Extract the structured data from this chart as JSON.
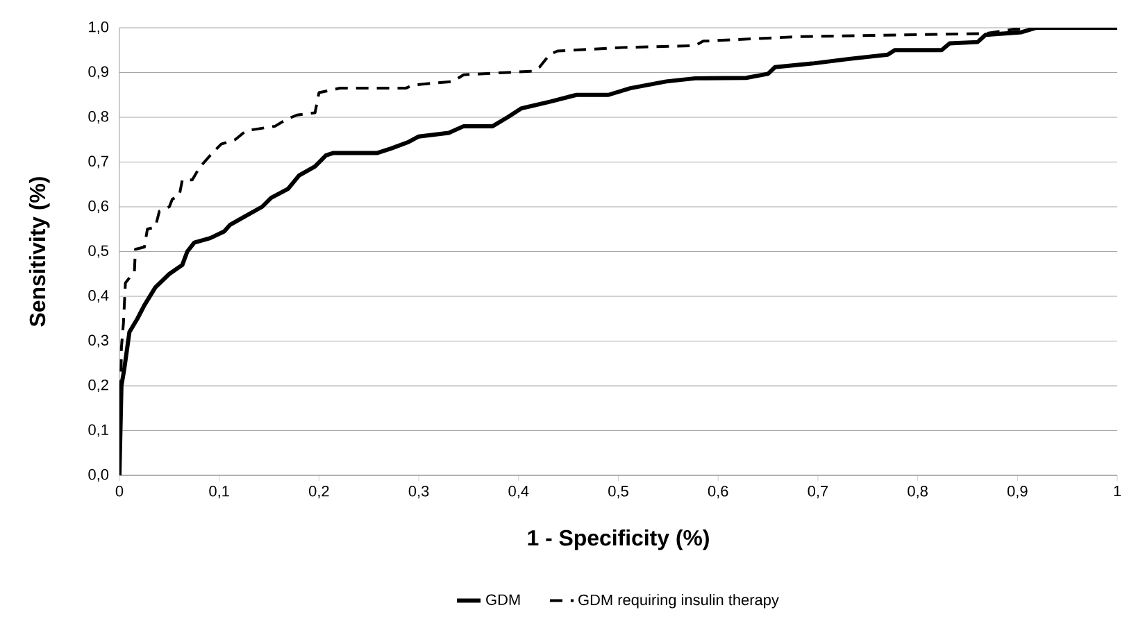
{
  "chart_data": {
    "type": "line",
    "xlabel": "1 - Specificity (%)",
    "ylabel": "Sensitivity (%)",
    "xlim": [
      0,
      1
    ],
    "ylim": [
      0,
      1
    ],
    "xticks": [
      0,
      {
        "value": 0.1,
        "label": "0,1"
      },
      {
        "value": 0.2,
        "label": "0,2"
      },
      {
        "value": 0.3,
        "label": "0,3"
      },
      {
        "value": 0.4,
        "label": "0,4"
      },
      {
        "value": 0.5,
        "label": "0,5"
      },
      {
        "value": 0.6,
        "label": "0,6"
      },
      {
        "value": 0.7,
        "label": "0,7"
      },
      {
        "value": 0.8,
        "label": "0,8"
      },
      {
        "value": 0.9,
        "label": "0,9"
      },
      1
    ],
    "yticks": [
      {
        "value": 0,
        "label": "0,0"
      },
      {
        "value": 0.1,
        "label": "0,1"
      },
      {
        "value": 0.2,
        "label": "0,2"
      },
      {
        "value": 0.3,
        "label": "0,3"
      },
      {
        "value": 0.4,
        "label": "0,4"
      },
      {
        "value": 0.5,
        "label": "0,5"
      },
      {
        "value": 0.6,
        "label": "0,6"
      },
      {
        "value": 0.7,
        "label": "0,7"
      },
      {
        "value": 0.8,
        "label": "0,8"
      },
      {
        "value": 0.9,
        "label": "0,9"
      },
      {
        "value": 1,
        "label": "1,0"
      }
    ],
    "grid": "y",
    "legend": "bottom",
    "series": [
      {
        "name": "GDM",
        "color": "#000000",
        "line_style": "solid",
        "x": [
          0,
          0.001,
          0.002,
          0.005,
          0.01,
          0.018,
          0.025,
          0.036,
          0.05,
          0.063,
          0.068,
          0.075,
          0.091,
          0.105,
          0.111,
          0.127,
          0.143,
          0.152,
          0.169,
          0.18,
          0.196,
          0.207,
          0.214,
          0.258,
          0.272,
          0.29,
          0.3,
          0.33,
          0.345,
          0.374,
          0.389,
          0.403,
          0.432,
          0.458,
          0.49,
          0.512,
          0.548,
          0.577,
          0.628,
          0.65,
          0.657,
          0.694,
          0.73,
          0.77,
          0.777,
          0.824,
          0.832,
          0.86,
          0.868,
          0.904,
          0.919,
          1
        ],
        "values": [
          0,
          0.1,
          0.2,
          0.24,
          0.32,
          0.35,
          0.38,
          0.42,
          0.45,
          0.47,
          0.5,
          0.52,
          0.53,
          0.545,
          0.56,
          0.58,
          0.6,
          0.62,
          0.64,
          0.67,
          0.69,
          0.715,
          0.72,
          0.72,
          0.73,
          0.745,
          0.757,
          0.765,
          0.78,
          0.78,
          0.8,
          0.82,
          0.835,
          0.85,
          0.85,
          0.865,
          0.88,
          0.887,
          0.888,
          0.897,
          0.912,
          0.92,
          0.93,
          0.94,
          0.95,
          0.95,
          0.965,
          0.968,
          0.984,
          0.99,
          1,
          1
        ]
      },
      {
        "name": "GDM requiring insulin therapy",
        "color": "#000000",
        "line_style": "dashed",
        "x": [
          0,
          0.002,
          0.004,
          0.006,
          0.015,
          0.016,
          0.025,
          0.028,
          0.036,
          0.04,
          0.05,
          0.053,
          0.06,
          0.063,
          0.073,
          0.08,
          0.091,
          0.102,
          0.116,
          0.127,
          0.156,
          0.167,
          0.178,
          0.196,
          0.2,
          0.221,
          0.287,
          0.294,
          0.334,
          0.345,
          0.414,
          0.421,
          0.431,
          0.439,
          0.505,
          0.577,
          0.585,
          0.68,
          0.868,
          0.897,
          0.94,
          1
        ],
        "values": [
          0,
          0.286,
          0.34,
          0.43,
          0.455,
          0.505,
          0.51,
          0.55,
          0.555,
          0.59,
          0.6,
          0.617,
          0.625,
          0.66,
          0.66,
          0.687,
          0.715,
          0.74,
          0.75,
          0.77,
          0.78,
          0.795,
          0.805,
          0.81,
          0.855,
          0.865,
          0.865,
          0.872,
          0.88,
          0.895,
          0.903,
          0.912,
          0.94,
          0.948,
          0.956,
          0.96,
          0.97,
          0.98,
          0.987,
          0.997,
          1,
          1
        ]
      }
    ]
  }
}
